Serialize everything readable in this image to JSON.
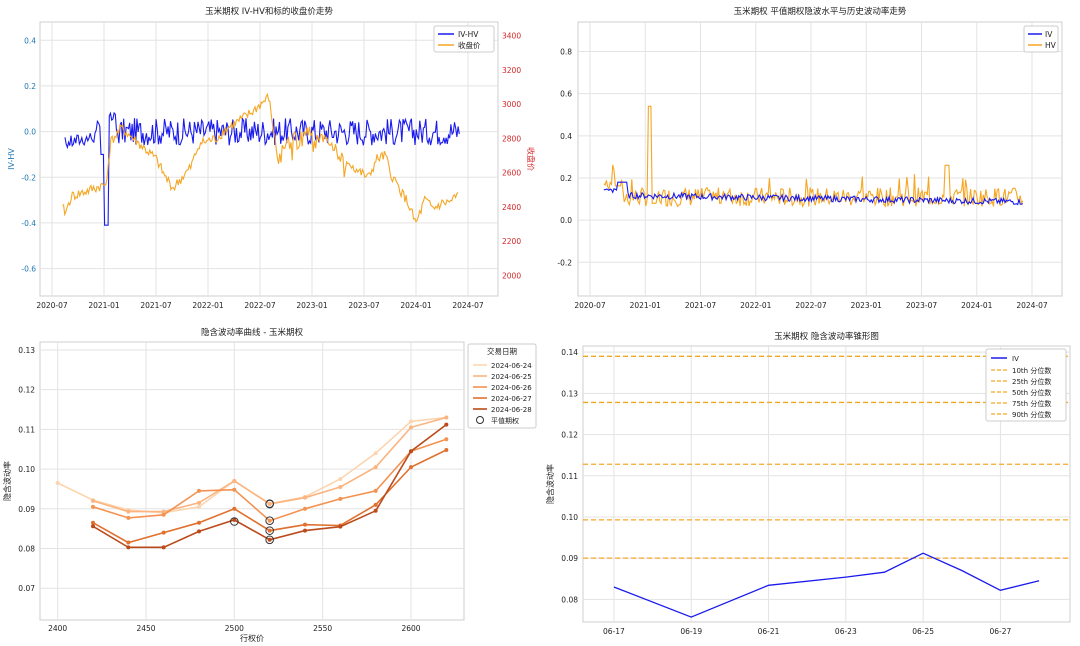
{
  "chart_data": [
    {
      "type": "line",
      "title": "玉米期权 IV-HV和标的收盘价走势",
      "ylabel": "IV-HV",
      "y2label": "收盘价",
      "ylim": [
        -0.72,
        0.48
      ],
      "y2lim": [
        1880,
        3480
      ],
      "yticks": [
        "0.4",
        "0.2",
        "0.0",
        "-0.2",
        "-0.4",
        "-0.6"
      ],
      "y2ticks": [
        "3400",
        "3200",
        "3000",
        "2800",
        "2600",
        "2400",
        "2200",
        "2000"
      ],
      "xticks": [
        "2020-07",
        "2021-01",
        "2021-07",
        "2022-01",
        "2022-07",
        "2023-01",
        "2023-07",
        "2024-01",
        "2024-07"
      ],
      "legend": "top-right",
      "grid": true,
      "series": [
        {
          "name": "IV-HV",
          "color": "#1a1aee",
          "axis": "left"
        },
        {
          "name": "收盘价",
          "color": "#f5a623",
          "axis": "right"
        }
      ]
    },
    {
      "type": "line",
      "title": "玉米期权 平值期权隐波水平与历史波动率走势",
      "ylim": [
        -0.36,
        0.94
      ],
      "yticks": [
        "0.8",
        "0.6",
        "0.4",
        "0.2",
        "0.0",
        "-0.2"
      ],
      "xticks": [
        "2020-07",
        "2021-01",
        "2021-07",
        "2022-01",
        "2022-07",
        "2023-01",
        "2023-07",
        "2024-01",
        "2024-07"
      ],
      "legend": "top-right",
      "grid": true,
      "series": [
        {
          "name": "IV",
          "color": "#1a1aee"
        },
        {
          "name": "HV",
          "color": "#f5a623"
        }
      ]
    },
    {
      "type": "line",
      "title": "隐含波动率曲线 - 玉米期权",
      "xlabel": "行权价",
      "ylabel": "隐含波动率",
      "xlim": [
        2390,
        2630
      ],
      "ylim": [
        0.062,
        0.132
      ],
      "xticks": [
        "2400",
        "2450",
        "2500",
        "2550",
        "2600"
      ],
      "yticks": [
        "0.13",
        "0.12",
        "0.11",
        "0.10",
        "0.09",
        "0.08",
        "0.07"
      ],
      "legend_title": "交易日期",
      "legend_atm": "平值期权",
      "legend": "outside-right",
      "grid": true,
      "series": [
        {
          "name": "2024-06-24",
          "color": "#fcd5b0",
          "x": [
            2400,
            2420,
            2440,
            2460,
            2480,
            2500,
            2520,
            2540,
            2560,
            2580,
            2600,
            2620
          ],
          "values": [
            0.0965,
            0.0922,
            0.0897,
            0.089,
            0.0905,
            0.097,
            0.0913,
            0.093,
            0.0975,
            0.104,
            0.112,
            0.113
          ],
          "atm": [
            2520,
            0.0913
          ]
        },
        {
          "name": "2024-06-25",
          "color": "#fbb47f",
          "x": [
            2420,
            2440,
            2460,
            2480,
            2500,
            2520,
            2540,
            2560,
            2580,
            2600,
            2620
          ],
          "values": [
            0.092,
            0.0893,
            0.0893,
            0.0915,
            0.097,
            0.0912,
            0.0928,
            0.0955,
            0.1005,
            0.1105,
            0.113
          ],
          "atm": [
            2520,
            0.0912
          ]
        },
        {
          "name": "2024-06-26",
          "color": "#f39251",
          "x": [
            2420,
            2440,
            2460,
            2480,
            2500,
            2520,
            2540,
            2560,
            2580,
            2600,
            2620
          ],
          "values": [
            0.0905,
            0.0877,
            0.0885,
            0.0945,
            0.0948,
            0.087,
            0.09,
            0.0925,
            0.0945,
            0.1045,
            0.1075
          ],
          "atm": [
            2520,
            0.087
          ]
        },
        {
          "name": "2024-06-27",
          "color": "#e0702e",
          "x": [
            2420,
            2440,
            2460,
            2480,
            2500,
            2520,
            2540,
            2560,
            2580,
            2600,
            2620
          ],
          "values": [
            0.0865,
            0.0815,
            0.084,
            0.0865,
            0.09,
            0.0845,
            0.086,
            0.0858,
            0.091,
            0.1005,
            0.1048
          ],
          "atm": [
            2520,
            0.0845
          ]
        },
        {
          "name": "2024-06-28",
          "color": "#bb4b1a",
          "x": [
            2420,
            2440,
            2460,
            2480,
            2500,
            2520,
            2540,
            2560,
            2580,
            2600,
            2620
          ],
          "values": [
            0.0856,
            0.0803,
            0.0803,
            0.0843,
            0.0872,
            0.0822,
            0.0845,
            0.0855,
            0.0895,
            0.1045,
            0.1112
          ],
          "atm": [
            2520,
            0.0822
          ]
        }
      ],
      "atm_extra": [
        [
          2500,
          0.0868
        ]
      ]
    },
    {
      "type": "line",
      "title": "玉米期权 隐含波动率锥形图",
      "ylabel": "隐含波动率",
      "ylim": [
        0.0745,
        0.1415
      ],
      "yticks": [
        "0.14",
        "0.13",
        "0.12",
        "0.11",
        "0.10",
        "0.09",
        "0.08"
      ],
      "xticks": [
        "06-17",
        "06-19",
        "06-21",
        "06-23",
        "06-25",
        "06-27"
      ],
      "legend": "top-right",
      "grid": true,
      "x": [
        0,
        2,
        4,
        6,
        7,
        8,
        9,
        10,
        11
      ],
      "series": [
        {
          "name": "IV",
          "color": "#1a1aee",
          "values": [
            0.083,
            0.0757,
            0.0834,
            0.0854,
            0.0866,
            0.0912,
            0.087,
            0.0822,
            0.0845
          ]
        }
      ],
      "percentiles": [
        {
          "name": "10th 分位数",
          "value": 0.09
        },
        {
          "name": "25th 分位数",
          "value": 0.0993
        },
        {
          "name": "50th 分位数",
          "value": 0.1128
        },
        {
          "name": "75th 分位数",
          "value": 0.1278
        },
        {
          "name": "90th 分位数",
          "value": 0.139
        }
      ],
      "percentile_color": "#f5a623"
    }
  ]
}
